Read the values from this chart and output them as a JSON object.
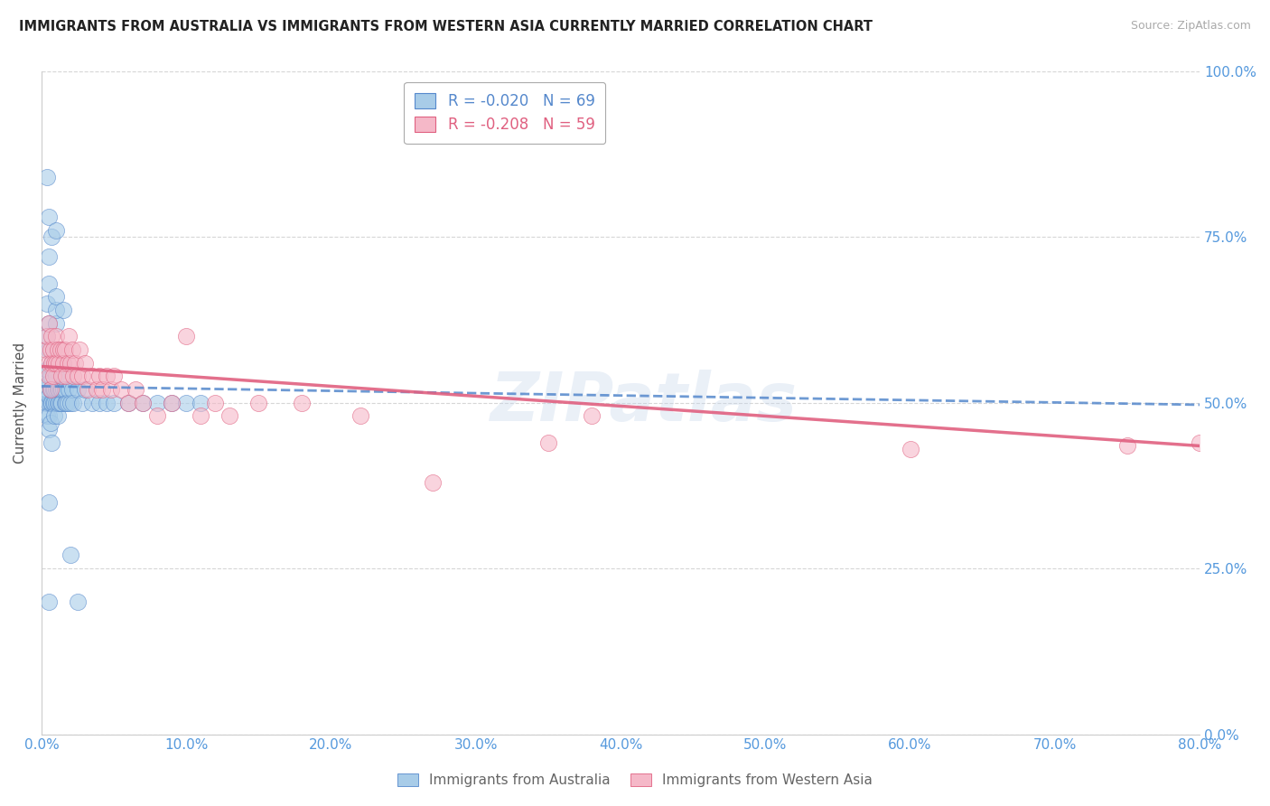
{
  "title": "IMMIGRANTS FROM AUSTRALIA VS IMMIGRANTS FROM WESTERN ASIA CURRENTLY MARRIED CORRELATION CHART",
  "source": "Source: ZipAtlas.com",
  "ylabel": "Currently Married",
  "xlim": [
    0.0,
    0.8
  ],
  "ylim": [
    0.0,
    1.0
  ],
  "legend1_label": "Immigrants from Australia",
  "legend2_label": "Immigrants from Western Asia",
  "R1": -0.02,
  "N1": 69,
  "R2": -0.208,
  "N2": 59,
  "color_australia": "#a8cce8",
  "color_western_asia": "#f5b8c8",
  "color_aus_edge": "#5588cc",
  "color_was_edge": "#e06080",
  "color_axis_labels": "#5599dd",
  "color_trendline_australia": "#5588cc",
  "color_trendline_western_asia": "#e06080",
  "watermark": "ZIPatlas",
  "trendline_aus_x0": 0.0,
  "trendline_aus_y0": 0.525,
  "trendline_aus_x1": 0.8,
  "trendline_aus_y1": 0.497,
  "trendline_was_x0": 0.0,
  "trendline_was_y0": 0.555,
  "trendline_was_x1": 0.8,
  "trendline_was_y1": 0.435,
  "aus_x": [
    0.003,
    0.003,
    0.004,
    0.004,
    0.004,
    0.004,
    0.005,
    0.005,
    0.005,
    0.005,
    0.005,
    0.005,
    0.005,
    0.005,
    0.005,
    0.006,
    0.006,
    0.006,
    0.006,
    0.007,
    0.007,
    0.007,
    0.007,
    0.008,
    0.008,
    0.008,
    0.008,
    0.009,
    0.009,
    0.009,
    0.01,
    0.01,
    0.01,
    0.01,
    0.01,
    0.01,
    0.011,
    0.011,
    0.011,
    0.012,
    0.012,
    0.013,
    0.013,
    0.014,
    0.014,
    0.015,
    0.015,
    0.015,
    0.016,
    0.016,
    0.017,
    0.018,
    0.019,
    0.02,
    0.021,
    0.022,
    0.025,
    0.028,
    0.03,
    0.035,
    0.04,
    0.045,
    0.05,
    0.06,
    0.07,
    0.08,
    0.09,
    0.1,
    0.11
  ],
  "aus_y": [
    0.5,
    0.52,
    0.48,
    0.55,
    0.6,
    0.65,
    0.5,
    0.51,
    0.53,
    0.48,
    0.46,
    0.58,
    0.62,
    0.68,
    0.72,
    0.5,
    0.52,
    0.54,
    0.47,
    0.5,
    0.52,
    0.56,
    0.44,
    0.5,
    0.52,
    0.55,
    0.58,
    0.5,
    0.52,
    0.48,
    0.5,
    0.52,
    0.54,
    0.62,
    0.64,
    0.66,
    0.5,
    0.52,
    0.48,
    0.5,
    0.52,
    0.5,
    0.52,
    0.5,
    0.52,
    0.52,
    0.54,
    0.56,
    0.5,
    0.52,
    0.5,
    0.5,
    0.52,
    0.5,
    0.52,
    0.5,
    0.52,
    0.5,
    0.52,
    0.5,
    0.5,
    0.5,
    0.5,
    0.5,
    0.5,
    0.5,
    0.5,
    0.5,
    0.5
  ],
  "aus_outliers_x": [
    0.004,
    0.005,
    0.007,
    0.01,
    0.015,
    0.02,
    0.025,
    0.005,
    0.005
  ],
  "aus_outliers_y": [
    0.84,
    0.78,
    0.75,
    0.76,
    0.64,
    0.27,
    0.2,
    0.2,
    0.35
  ],
  "was_x": [
    0.003,
    0.004,
    0.005,
    0.005,
    0.005,
    0.006,
    0.006,
    0.007,
    0.007,
    0.008,
    0.008,
    0.009,
    0.01,
    0.01,
    0.011,
    0.012,
    0.013,
    0.014,
    0.015,
    0.015,
    0.016,
    0.017,
    0.018,
    0.019,
    0.02,
    0.021,
    0.022,
    0.023,
    0.025,
    0.026,
    0.028,
    0.03,
    0.032,
    0.035,
    0.038,
    0.04,
    0.042,
    0.045,
    0.048,
    0.05,
    0.055,
    0.06,
    0.065,
    0.07,
    0.08,
    0.09,
    0.1,
    0.11,
    0.12,
    0.13,
    0.15,
    0.18,
    0.22,
    0.27,
    0.35,
    0.38,
    0.6,
    0.75,
    0.8
  ],
  "was_y": [
    0.58,
    0.6,
    0.62,
    0.56,
    0.54,
    0.58,
    0.52,
    0.56,
    0.6,
    0.54,
    0.58,
    0.56,
    0.6,
    0.56,
    0.58,
    0.56,
    0.58,
    0.54,
    0.58,
    0.56,
    0.58,
    0.54,
    0.56,
    0.6,
    0.56,
    0.58,
    0.54,
    0.56,
    0.54,
    0.58,
    0.54,
    0.56,
    0.52,
    0.54,
    0.52,
    0.54,
    0.52,
    0.54,
    0.52,
    0.54,
    0.52,
    0.5,
    0.52,
    0.5,
    0.48,
    0.5,
    0.6,
    0.48,
    0.5,
    0.48,
    0.5,
    0.5,
    0.48,
    0.38,
    0.44,
    0.48,
    0.43,
    0.435,
    0.44
  ]
}
